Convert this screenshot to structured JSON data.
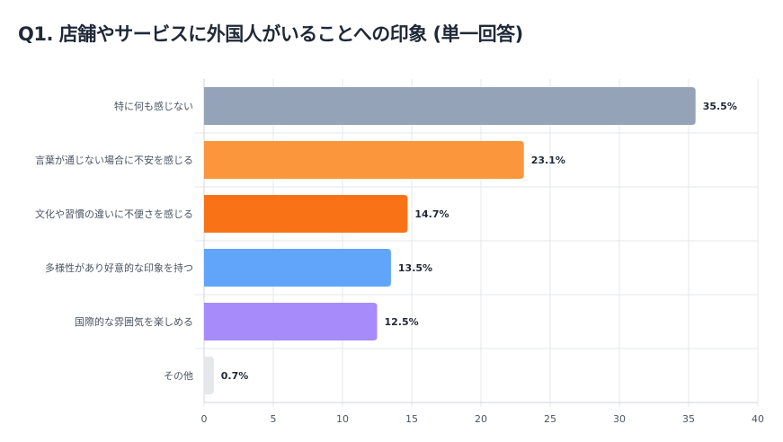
{
  "chart_data": {
    "type": "bar",
    "orientation": "horizontal",
    "title": "Q1. 店舗やサービスに外国人がいることへの印象 (単一回答)",
    "categories": [
      "特に何も感じない",
      "言葉が通じない場合に不安を感じる",
      "文化や習慣の違いに不便さを感じる",
      "多様性があり好意的な印象を持つ",
      "国際的な雰囲気を楽しめる",
      "その他"
    ],
    "values": [
      35.5,
      23.1,
      14.7,
      13.5,
      12.5,
      0.7
    ],
    "value_labels": [
      "35.5%",
      "23.1%",
      "14.7%",
      "13.5%",
      "12.5%",
      "0.7%"
    ],
    "colors": [
      "#94a3b8",
      "#fb963c",
      "#f97316",
      "#60a5fa",
      "#a78bfa",
      "#e5e7eb"
    ],
    "xlim": [
      0,
      40
    ],
    "xticks": [
      "0",
      "5",
      "10",
      "15",
      "20",
      "25",
      "30",
      "35",
      "40"
    ],
    "xlabel": "",
    "ylabel": "",
    "grid": true
  }
}
